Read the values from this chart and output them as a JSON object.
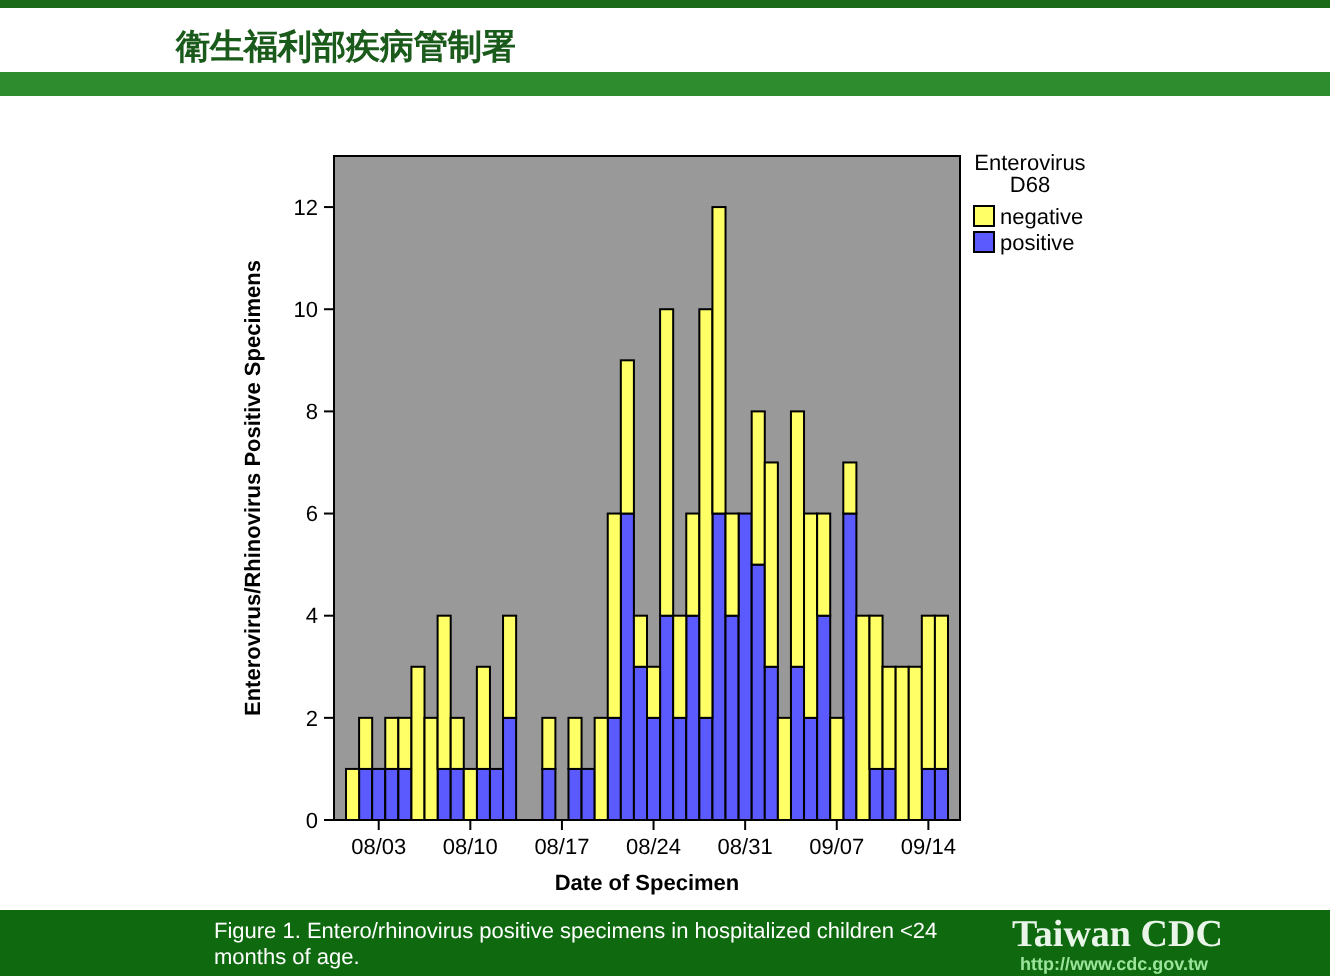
{
  "chart_data": {
    "type": "bar",
    "stacked": true,
    "xlabel": "Date of Specimen",
    "ylabel": "Enterovirus/Rhinovirus Positive Specimens",
    "legend_title": "Enterovirus D68",
    "legend": "right",
    "grid": false,
    "annotations": [
      "衛生福利部疾病管制署",
      "Figure 1. Entero/rhinovirus positive specimens in hospitalized children <24 months of age.",
      "Taiwan CDC",
      "http://www.cdc.gov.tw"
    ],
    "categories": [
      null,
      null,
      "08/03",
      null,
      null,
      null,
      null,
      null,
      null,
      "08/10",
      null,
      null,
      null,
      null,
      null,
      null,
      "08/17",
      null,
      null,
      null,
      null,
      null,
      null,
      "08/24",
      null,
      null,
      null,
      null,
      null,
      null,
      "08/31",
      null,
      null,
      null,
      null,
      null,
      null,
      "09/07",
      null,
      null,
      null,
      null,
      null,
      null,
      "09/14",
      null
    ],
    "ylim": [
      0,
      13
    ],
    "yticks": [
      0,
      2,
      4,
      6,
      8,
      10,
      12
    ],
    "series": [
      {
        "name": "positive",
        "color": "#5a5aff",
        "values": [
          0,
          1,
          1,
          1,
          1,
          0,
          0,
          1,
          1,
          0,
          1,
          1,
          2,
          0,
          0,
          1,
          0,
          1,
          1,
          0,
          2,
          6,
          3,
          2,
          4,
          2,
          4,
          2,
          6,
          4,
          6,
          5,
          3,
          0,
          3,
          2,
          4,
          0,
          6,
          0,
          1,
          1,
          0,
          0,
          1,
          1
        ]
      },
      {
        "name": "negative",
        "color": "#ffff66",
        "values": [
          1,
          1,
          0,
          1,
          1,
          3,
          2,
          3,
          1,
          1,
          2,
          0,
          2,
          0,
          0,
          1,
          0,
          1,
          0,
          2,
          4,
          3,
          1,
          1,
          6,
          2,
          2,
          8,
          6,
          2,
          0,
          3,
          4,
          2,
          5,
          4,
          2,
          2,
          1,
          4,
          3,
          2,
          3,
          3,
          3,
          3
        ]
      }
    ]
  }
}
